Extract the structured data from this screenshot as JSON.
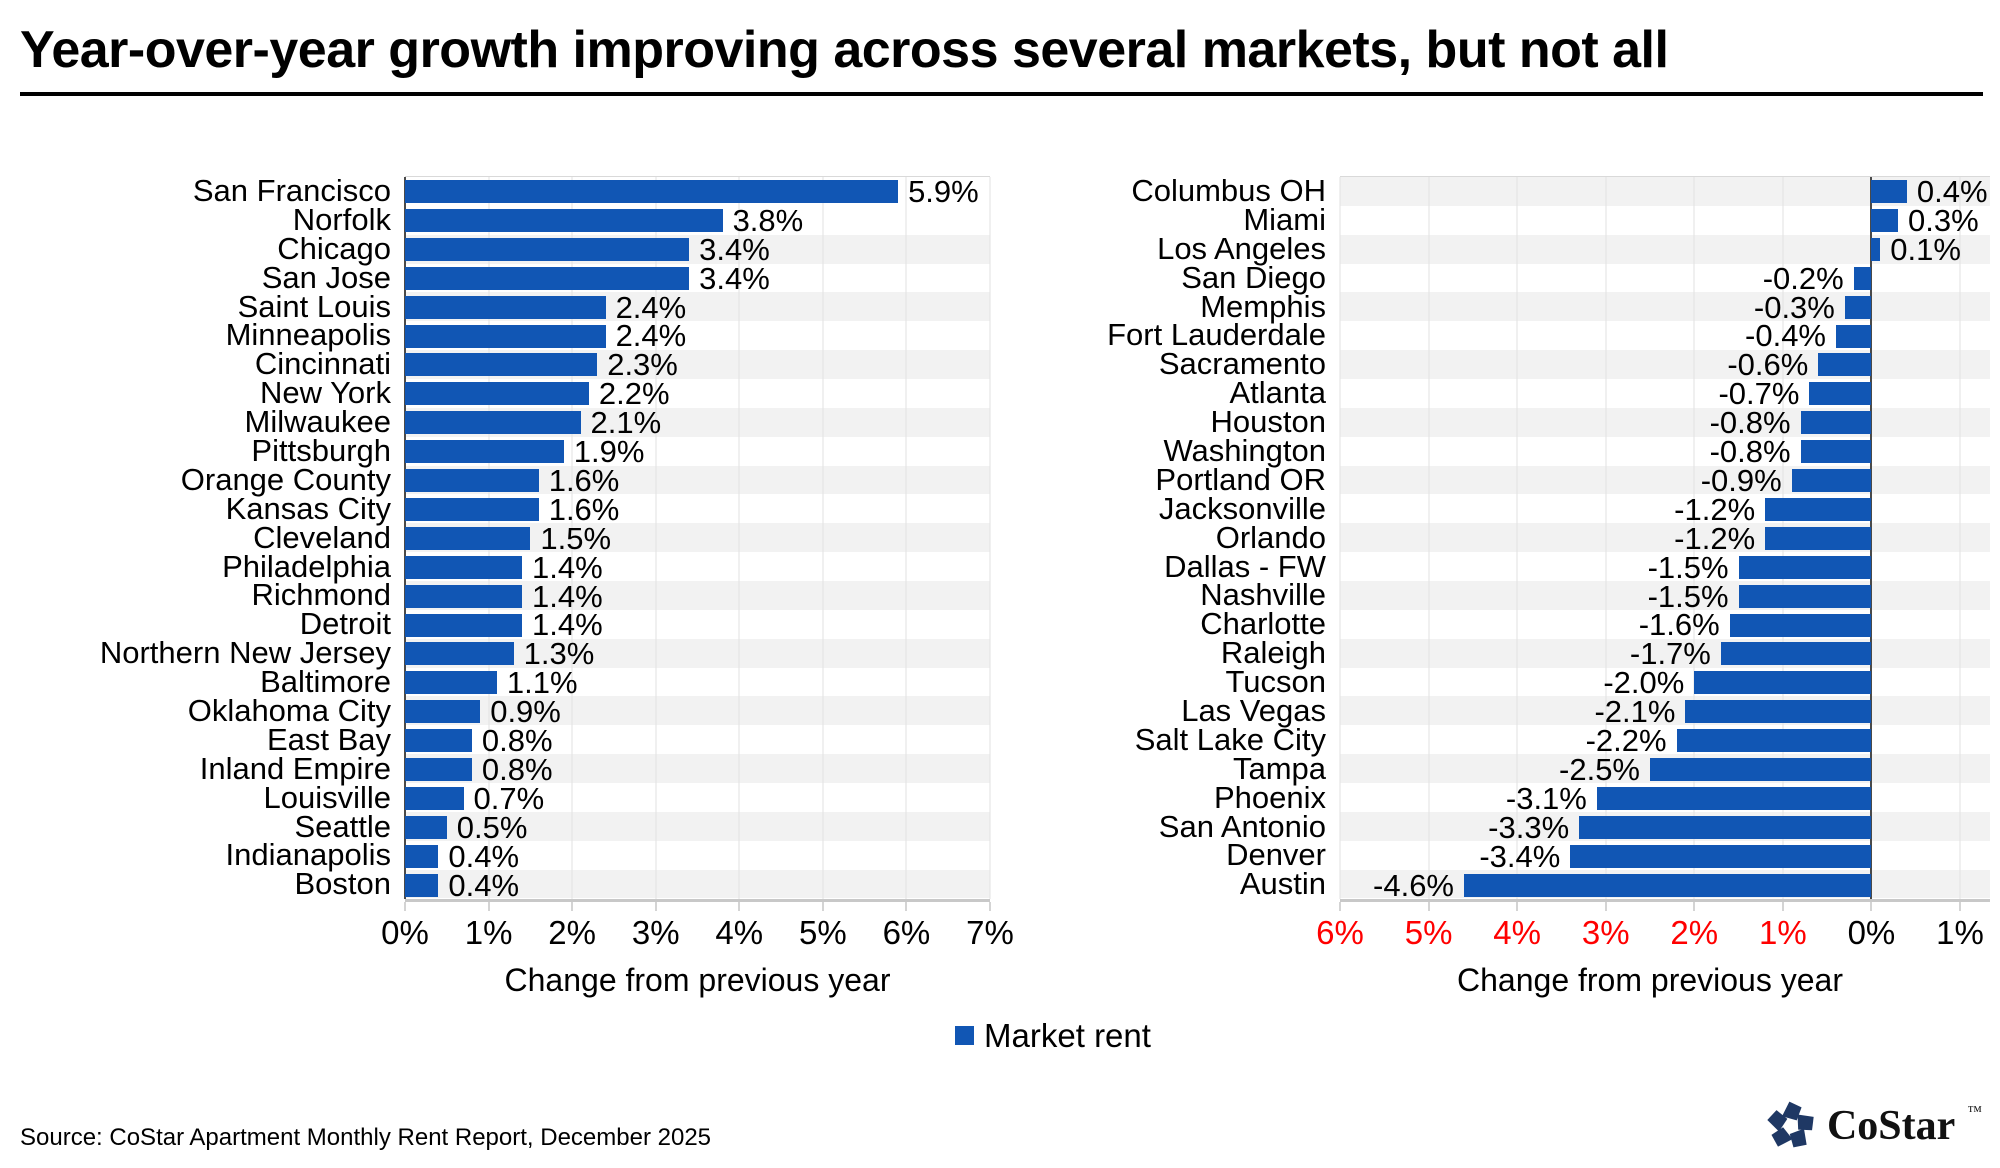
{
  "title": "Year-over-year growth improving across several markets, but not all",
  "source": "Source: CoStar Apartment Monthly Rent Report, December 2025",
  "legend": {
    "label": "Market rent",
    "color": "#1156B4"
  },
  "logo": {
    "text": "CoStar",
    "tm": "™",
    "icon_color": "#1F3864"
  },
  "colors": {
    "bar": "#1156B4",
    "row_band": "#F2F2F2",
    "gridline": "#E1E1E1",
    "axis_line": "#C8C8C8",
    "zero_line": "#4A4A4A",
    "negative_tick": "#FF0000"
  },
  "chart_data": [
    {
      "type": "bar",
      "orientation": "horizontal",
      "series_name": "Market rent",
      "xlabel": "Change from previous year",
      "xlim": [
        0,
        7
      ],
      "grid": true,
      "band_start_index": 2,
      "tick_values": [
        0,
        1,
        2,
        3,
        4,
        5,
        6,
        7
      ],
      "tick_labels": [
        "0%",
        "1%",
        "2%",
        "3%",
        "4%",
        "5%",
        "6%",
        "7%"
      ],
      "tick_negative": [
        false,
        false,
        false,
        false,
        false,
        false,
        false,
        false
      ],
      "categories": [
        "San Francisco",
        "Norfolk",
        "Chicago",
        "San Jose",
        "Saint Louis",
        "Minneapolis",
        "Cincinnati",
        "New York",
        "Milwaukee",
        "Pittsburgh",
        "Orange County",
        "Kansas City",
        "Cleveland",
        "Philadelphia",
        "Richmond",
        "Detroit",
        "Northern New Jersey",
        "Baltimore",
        "Oklahoma City",
        "East Bay",
        "Inland Empire",
        "Louisville",
        "Seattle",
        "Indianapolis",
        "Boston"
      ],
      "values": [
        5.9,
        3.8,
        3.4,
        3.4,
        2.4,
        2.4,
        2.3,
        2.2,
        2.1,
        1.9,
        1.6,
        1.6,
        1.5,
        1.4,
        1.4,
        1.4,
        1.3,
        1.1,
        0.9,
        0.8,
        0.8,
        0.7,
        0.5,
        0.4,
        0.4
      ],
      "value_labels": [
        "5.9%",
        "3.8%",
        "3.4%",
        "3.4%",
        "2.4%",
        "2.4%",
        "2.3%",
        "2.2%",
        "2.1%",
        "1.9%",
        "1.6%",
        "1.6%",
        "1.5%",
        "1.4%",
        "1.4%",
        "1.4%",
        "1.3%",
        "1.1%",
        "0.9%",
        "0.8%",
        "0.8%",
        "0.7%",
        "0.5%",
        "0.4%",
        "0.4%"
      ]
    },
    {
      "type": "bar",
      "orientation": "horizontal",
      "series_name": "Market rent",
      "xlabel": "Change from previous year",
      "xlim": [
        -6,
        1
      ],
      "grid": true,
      "band_start_index": 0,
      "tick_values": [
        -6,
        -5,
        -4,
        -3,
        -2,
        -1,
        0,
        1
      ],
      "tick_labels": [
        "6%",
        "5%",
        "4%",
        "3%",
        "2%",
        "1%",
        "0%",
        "1%"
      ],
      "tick_negative": [
        true,
        true,
        true,
        true,
        true,
        true,
        false,
        false
      ],
      "categories": [
        "Columbus OH",
        "Miami",
        "Los Angeles",
        "San Diego",
        "Memphis",
        "Fort Lauderdale",
        "Sacramento",
        "Atlanta",
        "Houston",
        "Washington",
        "Portland OR",
        "Jacksonville",
        "Orlando",
        "Dallas - FW",
        "Nashville",
        "Charlotte",
        "Raleigh",
        "Tucson",
        "Las Vegas",
        "Salt Lake City",
        "Tampa",
        "Phoenix",
        "San Antonio",
        "Denver",
        "Austin"
      ],
      "values": [
        0.4,
        0.3,
        0.1,
        -0.2,
        -0.3,
        -0.4,
        -0.6,
        -0.7,
        -0.8,
        -0.8,
        -0.9,
        -1.2,
        -1.2,
        -1.5,
        -1.5,
        -1.6,
        -1.7,
        -2.0,
        -2.1,
        -2.2,
        -2.5,
        -3.1,
        -3.3,
        -3.4,
        -4.6
      ],
      "value_labels": [
        "0.4%",
        "0.3%",
        "0.1%",
        "-0.2%",
        "-0.3%",
        "-0.4%",
        "-0.6%",
        "-0.7%",
        "-0.8%",
        "-0.8%",
        "-0.9%",
        "-1.2%",
        "-1.2%",
        "-1.5%",
        "-1.5%",
        "-1.6%",
        "-1.7%",
        "-2.0%",
        "-2.1%",
        "-2.2%",
        "-2.5%",
        "-3.1%",
        "-3.3%",
        "-3.4%",
        "-4.6%"
      ]
    }
  ]
}
